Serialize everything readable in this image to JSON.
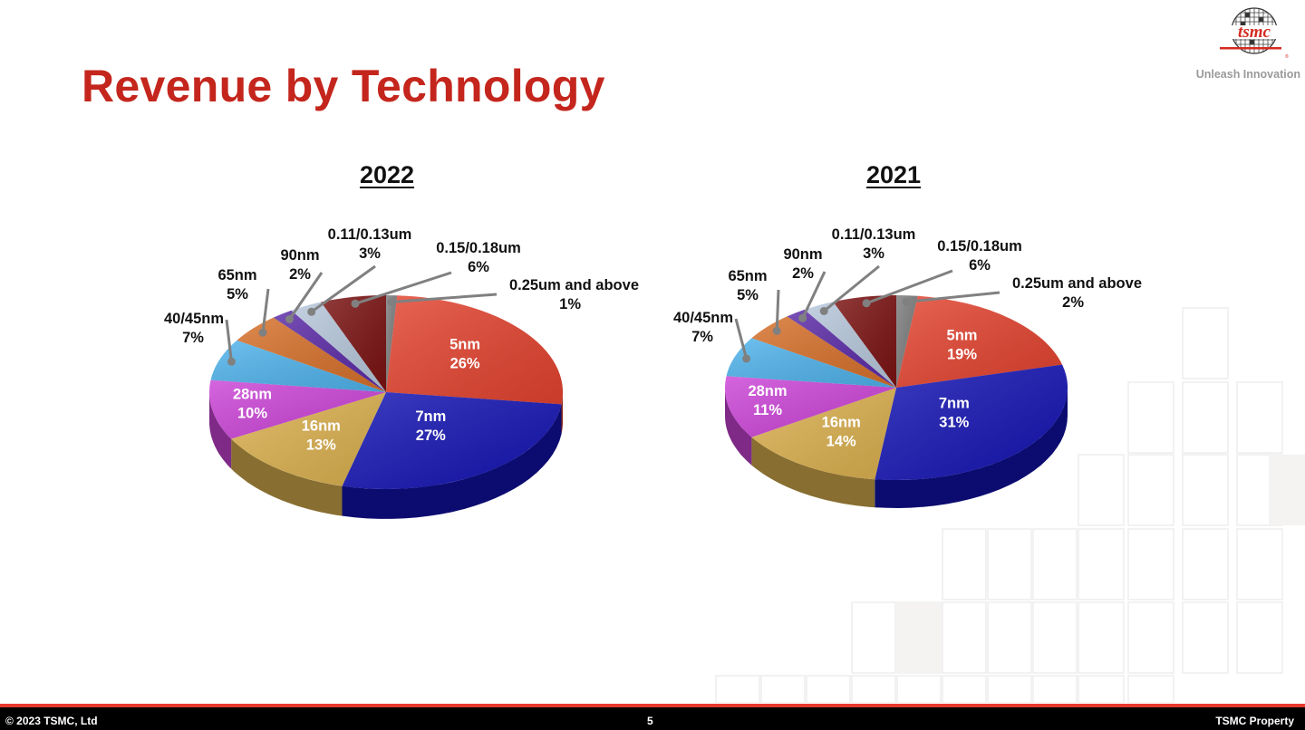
{
  "slide": {
    "title": "Revenue by Technology",
    "tagline": "Unleash Innovation",
    "logo_text": "tsmc"
  },
  "footer": {
    "copyright": "©  2023 TSMC, Ltd",
    "page_number": "5",
    "property": "TSMC Property"
  },
  "chart_data": [
    {
      "type": "pie",
      "title": "2022",
      "slices": [
        {
          "label": "0.25um and above",
          "value": 1,
          "color": "#7c7c7c"
        },
        {
          "label": "5nm",
          "value": 26,
          "color": "#e4432f"
        },
        {
          "label": "7nm",
          "value": 27,
          "color": "#1414b4"
        },
        {
          "label": "16nm",
          "value": 13,
          "color": "#dcb14f"
        },
        {
          "label": "28nm",
          "value": 10,
          "color": "#cc44d8"
        },
        {
          "label": "40/45nm",
          "value": 7,
          "color": "#4fb3ec"
        },
        {
          "label": "65nm",
          "value": 5,
          "color": "#d7702a"
        },
        {
          "label": "90nm",
          "value": 2,
          "color": "#5a2aa6"
        },
        {
          "label": "0.11/0.13um",
          "value": 3,
          "color": "#b7c8dc"
        },
        {
          "label": "0.15/0.18um",
          "value": 6,
          "color": "#7b1212"
        }
      ]
    },
    {
      "type": "pie",
      "title": "2021",
      "slices": [
        {
          "label": "0.25um and above",
          "value": 2,
          "color": "#7c7c7c"
        },
        {
          "label": "5nm",
          "value": 19,
          "color": "#e4432f"
        },
        {
          "label": "7nm",
          "value": 31,
          "color": "#1414b4"
        },
        {
          "label": "16nm",
          "value": 14,
          "color": "#dcb14f"
        },
        {
          "label": "28nm",
          "value": 11,
          "color": "#cc44d8"
        },
        {
          "label": "40/45nm",
          "value": 7,
          "color": "#4fb3ec"
        },
        {
          "label": "65nm",
          "value": 5,
          "color": "#d7702a"
        },
        {
          "label": "90nm",
          "value": 2,
          "color": "#5a2aa6"
        },
        {
          "label": "0.11/0.13um",
          "value": 3,
          "color": "#b7c8dc"
        },
        {
          "label": "0.15/0.18um",
          "value": 6,
          "color": "#7b1212"
        }
      ]
    }
  ]
}
